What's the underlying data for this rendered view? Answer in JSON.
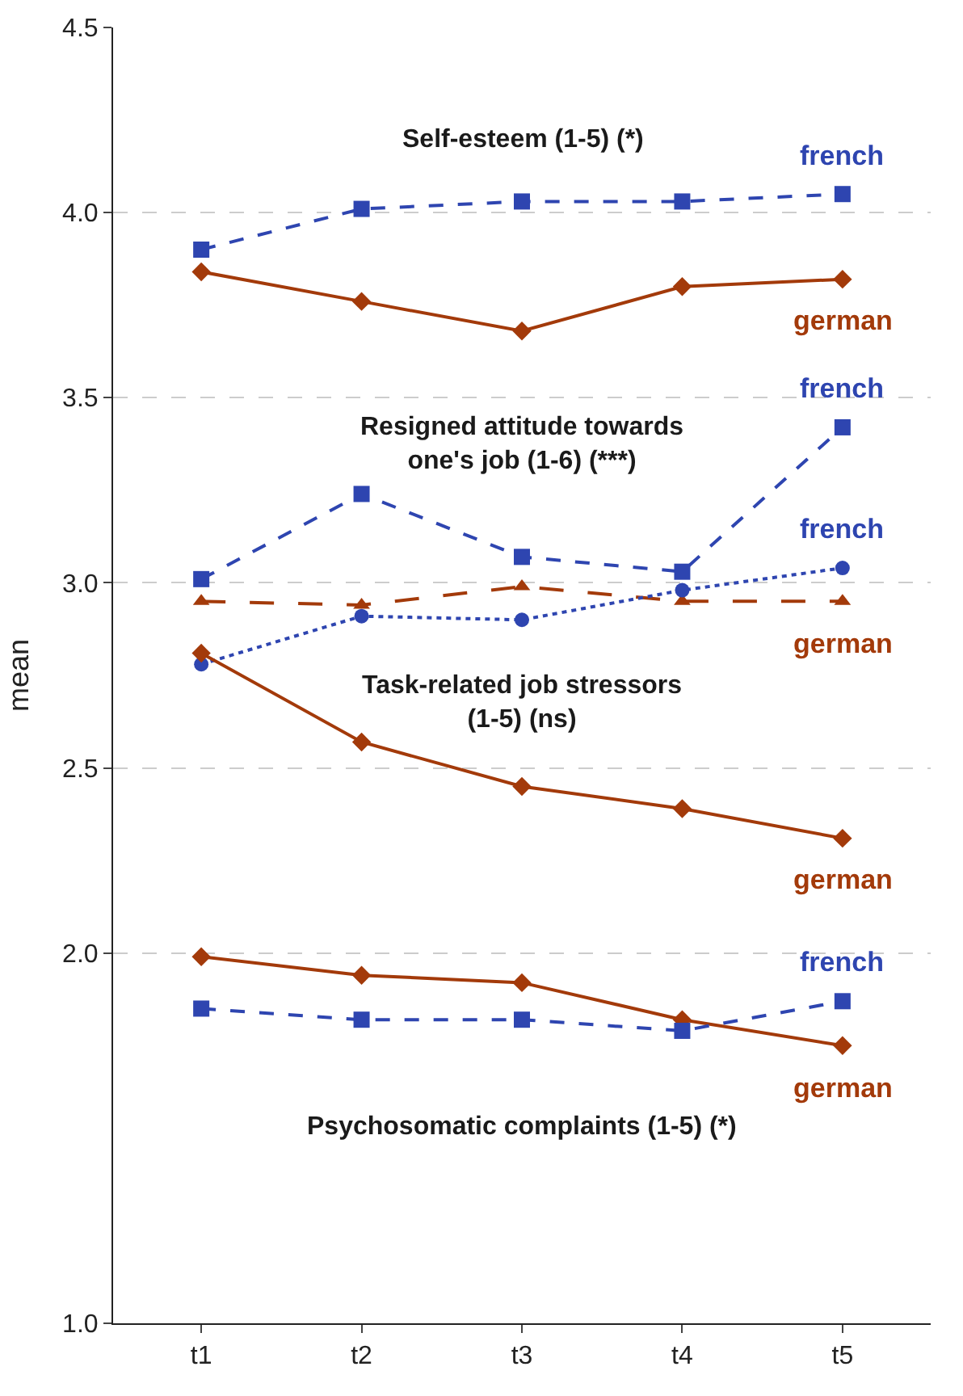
{
  "chart_data": {
    "type": "line",
    "ylabel": "mean",
    "categories": [
      "t1",
      "t2",
      "t3",
      "t4",
      "t5"
    ],
    "ylim": [
      1.0,
      4.5
    ],
    "yticks": [
      {
        "value": 1.0,
        "label": "1.0"
      },
      {
        "value": 2.0,
        "label": "2.0"
      },
      {
        "value": 2.5,
        "label": "2.5"
      },
      {
        "value": 3.0,
        "label": "3.0"
      },
      {
        "value": 3.5,
        "label": "3.5"
      },
      {
        "value": 4.0,
        "label": "4.0"
      },
      {
        "value": 4.5,
        "label": "4.5"
      }
    ],
    "grid": "y",
    "legend": false,
    "series": [
      {
        "name": "french",
        "color": "#2e45b0",
        "marker": "square",
        "line_style": "dashed",
        "values": [
          3.9,
          4.01,
          4.03,
          4.03,
          4.05
        ]
      },
      {
        "name": "german",
        "color": "#a33a0a",
        "marker": "diamond",
        "line_style": "solid",
        "values": [
          3.84,
          3.76,
          3.68,
          3.8,
          3.82
        ]
      },
      {
        "name": "french",
        "color": "#2e45b0",
        "marker": "square",
        "line_style": "dashed",
        "values": [
          3.01,
          3.24,
          3.07,
          3.03,
          3.42
        ]
      },
      {
        "name": "german",
        "color": "#a33a0a",
        "marker": "triangle",
        "line_style": "longdash",
        "values": [
          2.95,
          2.94,
          2.99,
          2.95,
          2.95
        ]
      },
      {
        "name": "french",
        "color": "#2e45b0",
        "marker": "circle",
        "line_style": "dotted",
        "values": [
          2.78,
          2.91,
          2.9,
          2.98,
          3.04
        ]
      },
      {
        "name": "german",
        "color": "#a33a0a",
        "marker": "diamond",
        "line_style": "solid",
        "values": [
          2.81,
          2.57,
          2.45,
          2.39,
          2.31
        ]
      },
      {
        "name": "german",
        "color": "#a33a0a",
        "marker": "diamond",
        "line_style": "solid",
        "values": [
          1.99,
          1.94,
          1.92,
          1.82,
          1.75
        ]
      },
      {
        "name": "french",
        "color": "#2e45b0",
        "marker": "square",
        "line_style": "dashed",
        "values": [
          1.85,
          1.82,
          1.82,
          1.79,
          1.87
        ]
      }
    ],
    "annotations": [
      "Self-esteem (1-5) (*)",
      "Resigned attitude towards\none's job (1-6) (***)",
      "Task-related job stressors\n(1-5) (ns)",
      "Psychosomatic complaints (1-5) (*)"
    ]
  }
}
